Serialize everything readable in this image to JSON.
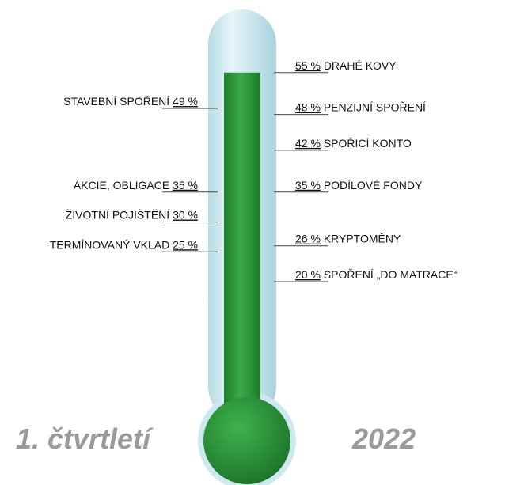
{
  "chart_data": {
    "type": "thermometer",
    "ylim": [
      0,
      60
    ],
    "fill_color": "#2f9a3c",
    "tube_color": "#cde8ef",
    "series": [
      {
        "side": "left",
        "categories": [
          "STAVEBNÍ SPOŘENÍ",
          "AKCIE, OBLIGACE",
          "ŽIVOTNÍ POJIŠTĚNÍ",
          "TERMÍNOVANÝ VKLAD"
        ],
        "values": [
          49,
          35,
          30,
          25
        ],
        "value_labels": [
          "49 %",
          "35 %",
          "30 %",
          "25 %"
        ]
      },
      {
        "side": "right",
        "categories": [
          "DRAHÉ KOVY",
          "PENZIJNÍ SPOŘENÍ",
          "SPOŘICÍ KONTO",
          "PODÍLOVÉ FONDY",
          "KRYPTOMĚNY",
          "SPOŘENÍ „DO MATRACE“"
        ],
        "values": [
          55,
          48,
          42,
          35,
          26,
          20
        ],
        "value_labels": [
          "55 %",
          "48 %",
          "42 %",
          "35 %",
          "26 %",
          "20 %"
        ]
      }
    ],
    "period": "1. čtvrtletí",
    "year": "2022"
  }
}
